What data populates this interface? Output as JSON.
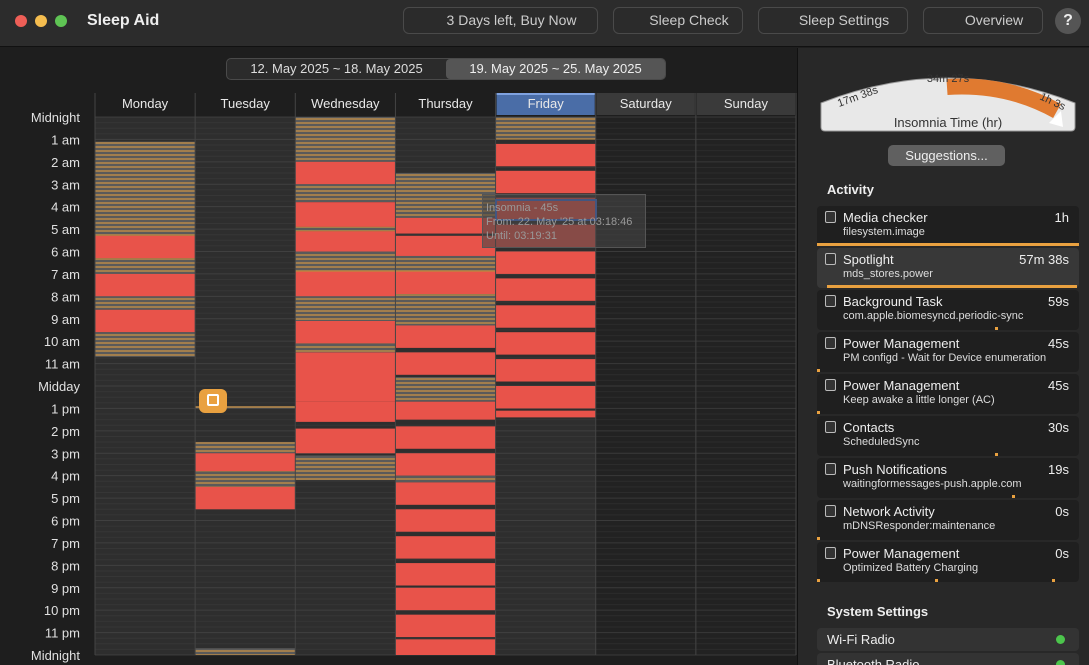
{
  "app": {
    "title": "Sleep Aid"
  },
  "toolbar": {
    "buy": "3 Days left, Buy Now",
    "sleep_check": "Sleep Check",
    "sleep_settings": "Sleep Settings",
    "overview": "Overview",
    "help": "?"
  },
  "week_tabs": [
    "12. May 2025 ~ 18. May 2025",
    "19. May 2025 ~ 25. May 2025"
  ],
  "days": [
    "Monday",
    "Tuesday",
    "Wednesday",
    "Thursday",
    "Friday",
    "Saturday",
    "Sunday"
  ],
  "hours": [
    "Midnight",
    "1 am",
    "2 am",
    "3 am",
    "4 am",
    "5 am",
    "6 am",
    "7 am",
    "8 am",
    "9 am",
    "10 am",
    "11 am",
    "Midday",
    "1 pm",
    "2 pm",
    "3 pm",
    "4 pm",
    "5 pm",
    "6 pm",
    "7 pm",
    "8 pm",
    "9 pm",
    "10 pm",
    "11 pm",
    "Midnight"
  ],
  "tooltip": {
    "title": "Insomnia - 45s",
    "from": "From: 22. May '25 at 03:18:46",
    "until": "Until: 03:19:31"
  },
  "gauge": {
    "min": "17m 38s",
    "mid": "34m 27s",
    "max": "1h 3s",
    "label": "Insomnia Time (hr)"
  },
  "suggestions": "Suggestions...",
  "activity": {
    "title": "Activity",
    "items": [
      {
        "name": "Media checker",
        "detail": "filesystem.image",
        "time": "1h"
      },
      {
        "name": "Spotlight",
        "detail": "mds_stores.power",
        "time": "57m 38s"
      },
      {
        "name": "Background Task",
        "detail": "com.apple.biomesyncd.periodic-sync",
        "time": "59s"
      },
      {
        "name": "Power Management",
        "detail": "PM configd - Wait for Device enumeration",
        "time": "45s"
      },
      {
        "name": "Power Management",
        "detail": "Keep awake a little longer (AC)",
        "time": "45s"
      },
      {
        "name": "Contacts",
        "detail": "ScheduledSync",
        "time": "30s"
      },
      {
        "name": "Push Notifications",
        "detail": "waitingformessages-push.apple.com",
        "time": "19s"
      },
      {
        "name": "Network Activity",
        "detail": "mDNSResponder:maintenance",
        "time": "0s"
      },
      {
        "name": "Power Management",
        "detail": "Optimized Battery Charging",
        "time": "0s"
      }
    ]
  },
  "system_settings": {
    "title": "System Settings",
    "items": [
      "Wi-Fi Radio",
      "Bluetooth Radio"
    ]
  }
}
